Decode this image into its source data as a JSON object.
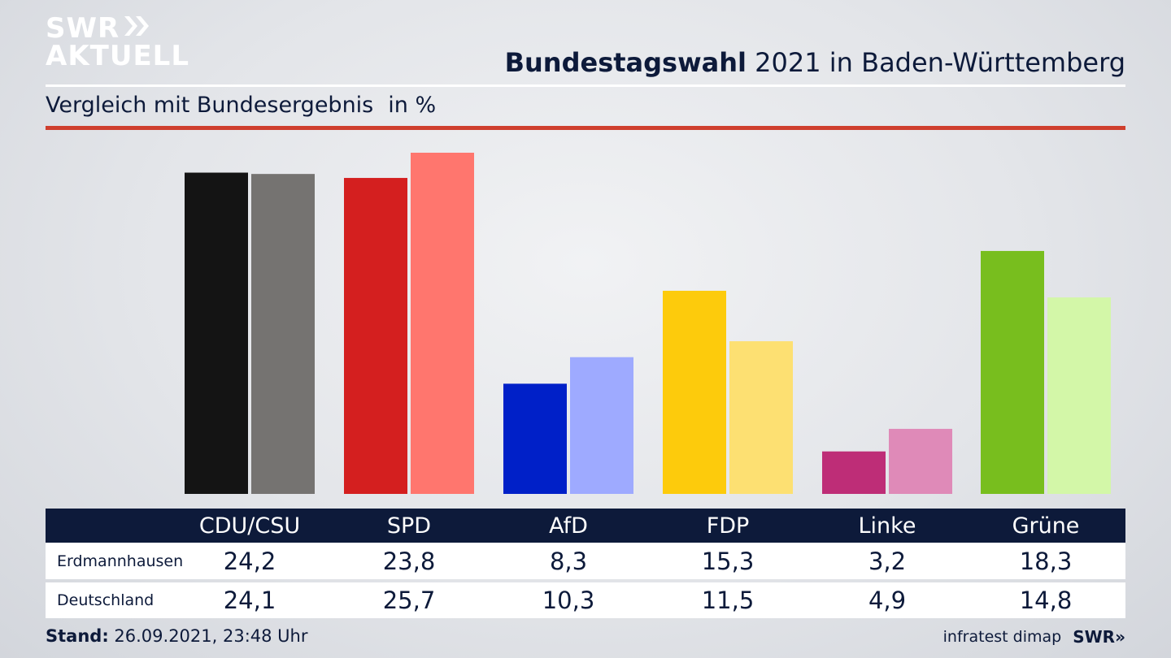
{
  "header": {
    "logo_line1": "SWR",
    "logo_chevrons": "»",
    "logo_line2": "AKTUELL",
    "title_bold": "Bundestagswahl",
    "title_rest": " 2021 in Baden-Württemberg",
    "subtitle": "Vergleich mit Bundesergebnis",
    "unit": "in %"
  },
  "footer": {
    "stand_label": "Stand:",
    "stand_value": " 26.09.2021, 23:48 Uhr",
    "source": "infratest dimap",
    "brand": "SWR»"
  },
  "chart_data": {
    "type": "bar",
    "categories": [
      "CDU/CSU",
      "SPD",
      "AfD",
      "FDP",
      "Linke",
      "Grüne"
    ],
    "series": [
      {
        "name": "Erdmannhausen",
        "values": [
          "24,2",
          "23,8",
          "8,3",
          "15,3",
          "3,2",
          "18,3"
        ]
      },
      {
        "name": "Deutschland",
        "values": [
          "24,1",
          "25,7",
          "10,3",
          "11,5",
          "4,9",
          "14,8"
        ]
      }
    ],
    "values_numeric": [
      [
        24.2,
        23.8,
        8.3,
        15.3,
        3.2,
        18.3
      ],
      [
        24.1,
        25.7,
        10.3,
        11.5,
        4.9,
        14.8
      ]
    ],
    "colors": {
      "Erdmannhausen": [
        "#141414",
        "#d41f1f",
        "#0020c8",
        "#fdcb0c",
        "#be2d77",
        "#78be1e"
      ],
      "Deutschland": [
        "#757371",
        "#ff766e",
        "#9eaaff",
        "#fde072",
        "#df8ab8",
        "#d3f7a8"
      ]
    },
    "ylim": [
      0,
      25.7
    ],
    "grid": false,
    "legend": "table-below"
  }
}
